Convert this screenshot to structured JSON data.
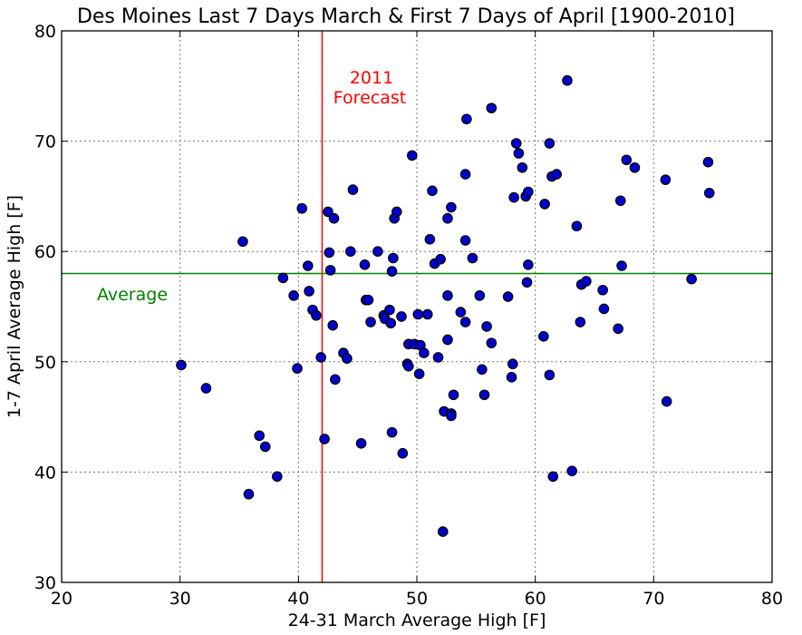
{
  "chart_data": {
    "type": "scatter",
    "title": "Des Moines Last 7 Days March & First 7 Days of April [1900-2010]",
    "xlabel": "24-31 March Average High [F]",
    "ylabel": "1-7 April Average High [F]",
    "xlim": [
      20,
      80
    ],
    "ylim": [
      30,
      80
    ],
    "xticks": [
      20,
      30,
      40,
      50,
      60,
      70,
      80
    ],
    "yticks": [
      30,
      40,
      50,
      60,
      70,
      80
    ],
    "grid": true,
    "marker_color": "#0000cc",
    "reference_lines": {
      "forecast": {
        "x": 42,
        "color": "#ff0000",
        "label_line1": "2011",
        "label_line2": "Forecast"
      },
      "average": {
        "y": 58,
        "color": "#008000",
        "label": "Average"
      }
    },
    "points": [
      [
        30.1,
        49.7
      ],
      [
        32.2,
        47.6
      ],
      [
        35.3,
        60.9
      ],
      [
        35.8,
        38.0
      ],
      [
        36.7,
        43.3
      ],
      [
        37.2,
        42.3
      ],
      [
        38.2,
        39.6
      ],
      [
        38.7,
        57.6
      ],
      [
        39.6,
        56.0
      ],
      [
        39.9,
        49.4
      ],
      [
        40.3,
        63.9
      ],
      [
        40.8,
        58.7
      ],
      [
        40.9,
        56.4
      ],
      [
        41.2,
        54.7
      ],
      [
        41.5,
        54.2
      ],
      [
        41.9,
        50.4
      ],
      [
        42.2,
        43.0
      ],
      [
        42.5,
        63.6
      ],
      [
        42.6,
        59.9
      ],
      [
        42.7,
        58.3
      ],
      [
        42.9,
        53.3
      ],
      [
        43.0,
        63.0
      ],
      [
        43.1,
        48.4
      ],
      [
        43.8,
        50.8
      ],
      [
        44.1,
        50.3
      ],
      [
        44.4,
        60.0
      ],
      [
        44.6,
        65.6
      ],
      [
        45.3,
        42.6
      ],
      [
        45.6,
        58.8
      ],
      [
        45.7,
        55.6
      ],
      [
        45.9,
        55.6
      ],
      [
        46.1,
        53.6
      ],
      [
        46.7,
        60.0
      ],
      [
        47.2,
        54.2
      ],
      [
        47.3,
        53.9
      ],
      [
        47.7,
        54.7
      ],
      [
        47.8,
        53.5
      ],
      [
        47.9,
        58.2
      ],
      [
        47.9,
        43.6
      ],
      [
        48.0,
        59.4
      ],
      [
        48.1,
        63.0
      ],
      [
        48.3,
        63.6
      ],
      [
        48.7,
        54.1
      ],
      [
        48.8,
        41.7
      ],
      [
        49.2,
        49.8
      ],
      [
        49.3,
        51.6
      ],
      [
        49.3,
        49.6
      ],
      [
        49.6,
        68.7
      ],
      [
        49.8,
        51.6
      ],
      [
        50.1,
        54.3
      ],
      [
        50.2,
        48.9
      ],
      [
        50.3,
        51.5
      ],
      [
        50.6,
        50.8
      ],
      [
        50.9,
        54.3
      ],
      [
        51.1,
        61.1
      ],
      [
        51.3,
        65.5
      ],
      [
        51.5,
        58.9
      ],
      [
        51.8,
        50.4
      ],
      [
        52.0,
        59.3
      ],
      [
        52.2,
        34.6
      ],
      [
        52.3,
        45.5
      ],
      [
        52.6,
        63.0
      ],
      [
        52.6,
        56.0
      ],
      [
        52.6,
        52.0
      ],
      [
        52.9,
        64.0
      ],
      [
        52.9,
        45.3
      ],
      [
        52.9,
        45.1
      ],
      [
        53.1,
        47.0
      ],
      [
        53.7,
        54.5
      ],
      [
        54.1,
        61.0
      ],
      [
        54.1,
        67.0
      ],
      [
        54.1,
        53.6
      ],
      [
        54.2,
        72.0
      ],
      [
        54.7,
        59.4
      ],
      [
        55.3,
        56.0
      ],
      [
        55.5,
        49.3
      ],
      [
        55.7,
        47.0
      ],
      [
        55.9,
        53.2
      ],
      [
        56.3,
        51.7
      ],
      [
        56.3,
        73.0
      ],
      [
        57.7,
        55.9
      ],
      [
        58.0,
        48.6
      ],
      [
        58.1,
        49.8
      ],
      [
        58.2,
        64.9
      ],
      [
        58.4,
        69.8
      ],
      [
        58.6,
        68.9
      ],
      [
        58.9,
        67.6
      ],
      [
        59.2,
        65.0
      ],
      [
        59.3,
        57.2
      ],
      [
        59.4,
        65.4
      ],
      [
        59.4,
        58.8
      ],
      [
        60.7,
        52.3
      ],
      [
        60.8,
        64.3
      ],
      [
        61.2,
        69.8
      ],
      [
        61.2,
        48.8
      ],
      [
        61.4,
        66.8
      ],
      [
        61.5,
        39.6
      ],
      [
        61.8,
        67.0
      ],
      [
        62.7,
        75.5
      ],
      [
        63.1,
        40.1
      ],
      [
        63.5,
        62.3
      ],
      [
        63.8,
        53.6
      ],
      [
        63.9,
        57.0
      ],
      [
        64.3,
        57.3
      ],
      [
        65.7,
        56.5
      ],
      [
        65.8,
        54.8
      ],
      [
        67.0,
        53.0
      ],
      [
        67.2,
        64.6
      ],
      [
        67.3,
        58.7
      ],
      [
        67.7,
        68.3
      ],
      [
        68.4,
        67.6
      ],
      [
        71.0,
        66.5
      ],
      [
        71.1,
        46.4
      ],
      [
        73.2,
        57.5
      ],
      [
        74.6,
        68.1
      ],
      [
        74.7,
        65.3
      ]
    ]
  }
}
